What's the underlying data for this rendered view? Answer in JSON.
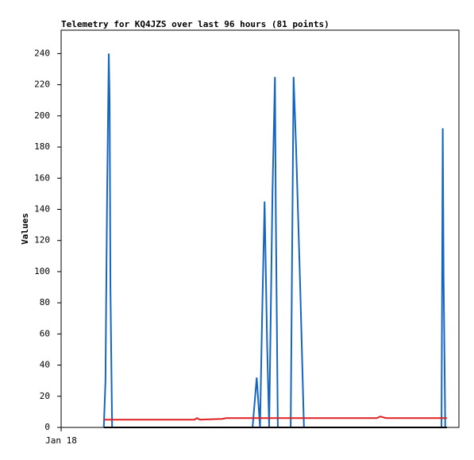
{
  "chart_data": {
    "type": "line",
    "title": "Telemetry for KQ4JZS over last 96 hours (81 points)",
    "y_label": "Values",
    "xlim": [
      0,
      96
    ],
    "xticks": [
      {
        "value": 0,
        "label": "Jan 18"
      }
    ],
    "ylim": [
      0,
      255
    ],
    "yticks": [
      0,
      20,
      40,
      60,
      80,
      100,
      120,
      140,
      160,
      180,
      200,
      220,
      240
    ],
    "grid": false,
    "series": [
      {
        "color": "#1565c0",
        "x": [
          10.3,
          10.7,
          11.1,
          11.5,
          11.7,
          11.9,
          12.3,
          46.2,
          47.2,
          48.0,
          48.5,
          49.1,
          49.7,
          50.2,
          51.0,
          51.6,
          51.8,
          52.3,
          55.4,
          56.1,
          56.7,
          57.7,
          58.6,
          91.8,
          92.1,
          92.3,
          92.7,
          93.1
        ],
        "values": [
          0,
          30,
          150,
          240,
          210,
          90,
          0,
          0,
          32,
          0,
          70,
          145,
          55,
          0,
          150,
          225,
          140,
          0,
          0,
          225,
          180,
          90,
          0,
          0,
          192,
          97,
          0,
          0
        ]
      },
      {
        "color": "#e02020",
        "x": [
          10.3,
          32.2,
          32.8,
          33.5,
          38.9,
          39.8,
          76.2,
          77.0,
          78.4,
          93.1
        ],
        "values": [
          5,
          5,
          6,
          5,
          5.5,
          6,
          6,
          7,
          6,
          6
        ]
      },
      {
        "color": "#000000",
        "x": [
          10.3,
          93.1
        ],
        "values": [
          0,
          0
        ]
      }
    ]
  }
}
